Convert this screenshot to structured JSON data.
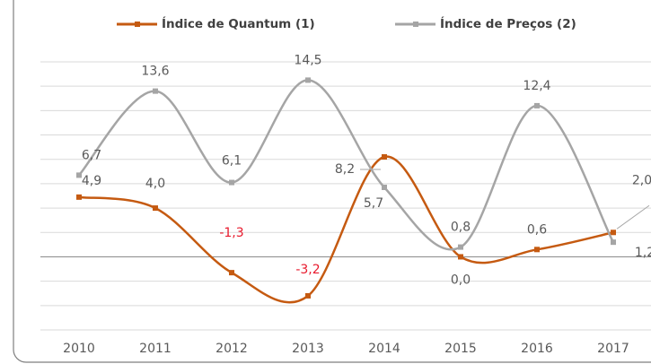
{
  "chart_data": {
    "type": "line",
    "categories": [
      "2010",
      "2011",
      "2012",
      "2013",
      "2014",
      "2015",
      "2016",
      "2017"
    ],
    "series": [
      {
        "name": "Índice de Quantum (1)",
        "color": "#c55a11",
        "values": [
          4.9,
          4.0,
          -1.3,
          -3.2,
          8.2,
          0.0,
          0.6,
          2.0
        ],
        "value_labels": [
          "4,9",
          "4,0",
          "-1,3",
          "-3,2",
          "8,2",
          "0,0",
          "0,6",
          "2,0"
        ]
      },
      {
        "name": "Índice de Preços (2)",
        "color": "#a5a5a5",
        "values": [
          6.7,
          13.6,
          6.1,
          14.5,
          5.7,
          0.8,
          12.4,
          1.2
        ],
        "value_labels": [
          "6,7",
          "13,6",
          "6,1",
          "14,5",
          "5,7",
          "0,8",
          "12,4",
          "1,2"
        ]
      }
    ],
    "ylim": [
      -6,
      16
    ],
    "yticks": [
      -6,
      -4,
      -2,
      0,
      2,
      4,
      6,
      8,
      10,
      12,
      14,
      16
    ],
    "grid": true,
    "legend": "top"
  }
}
